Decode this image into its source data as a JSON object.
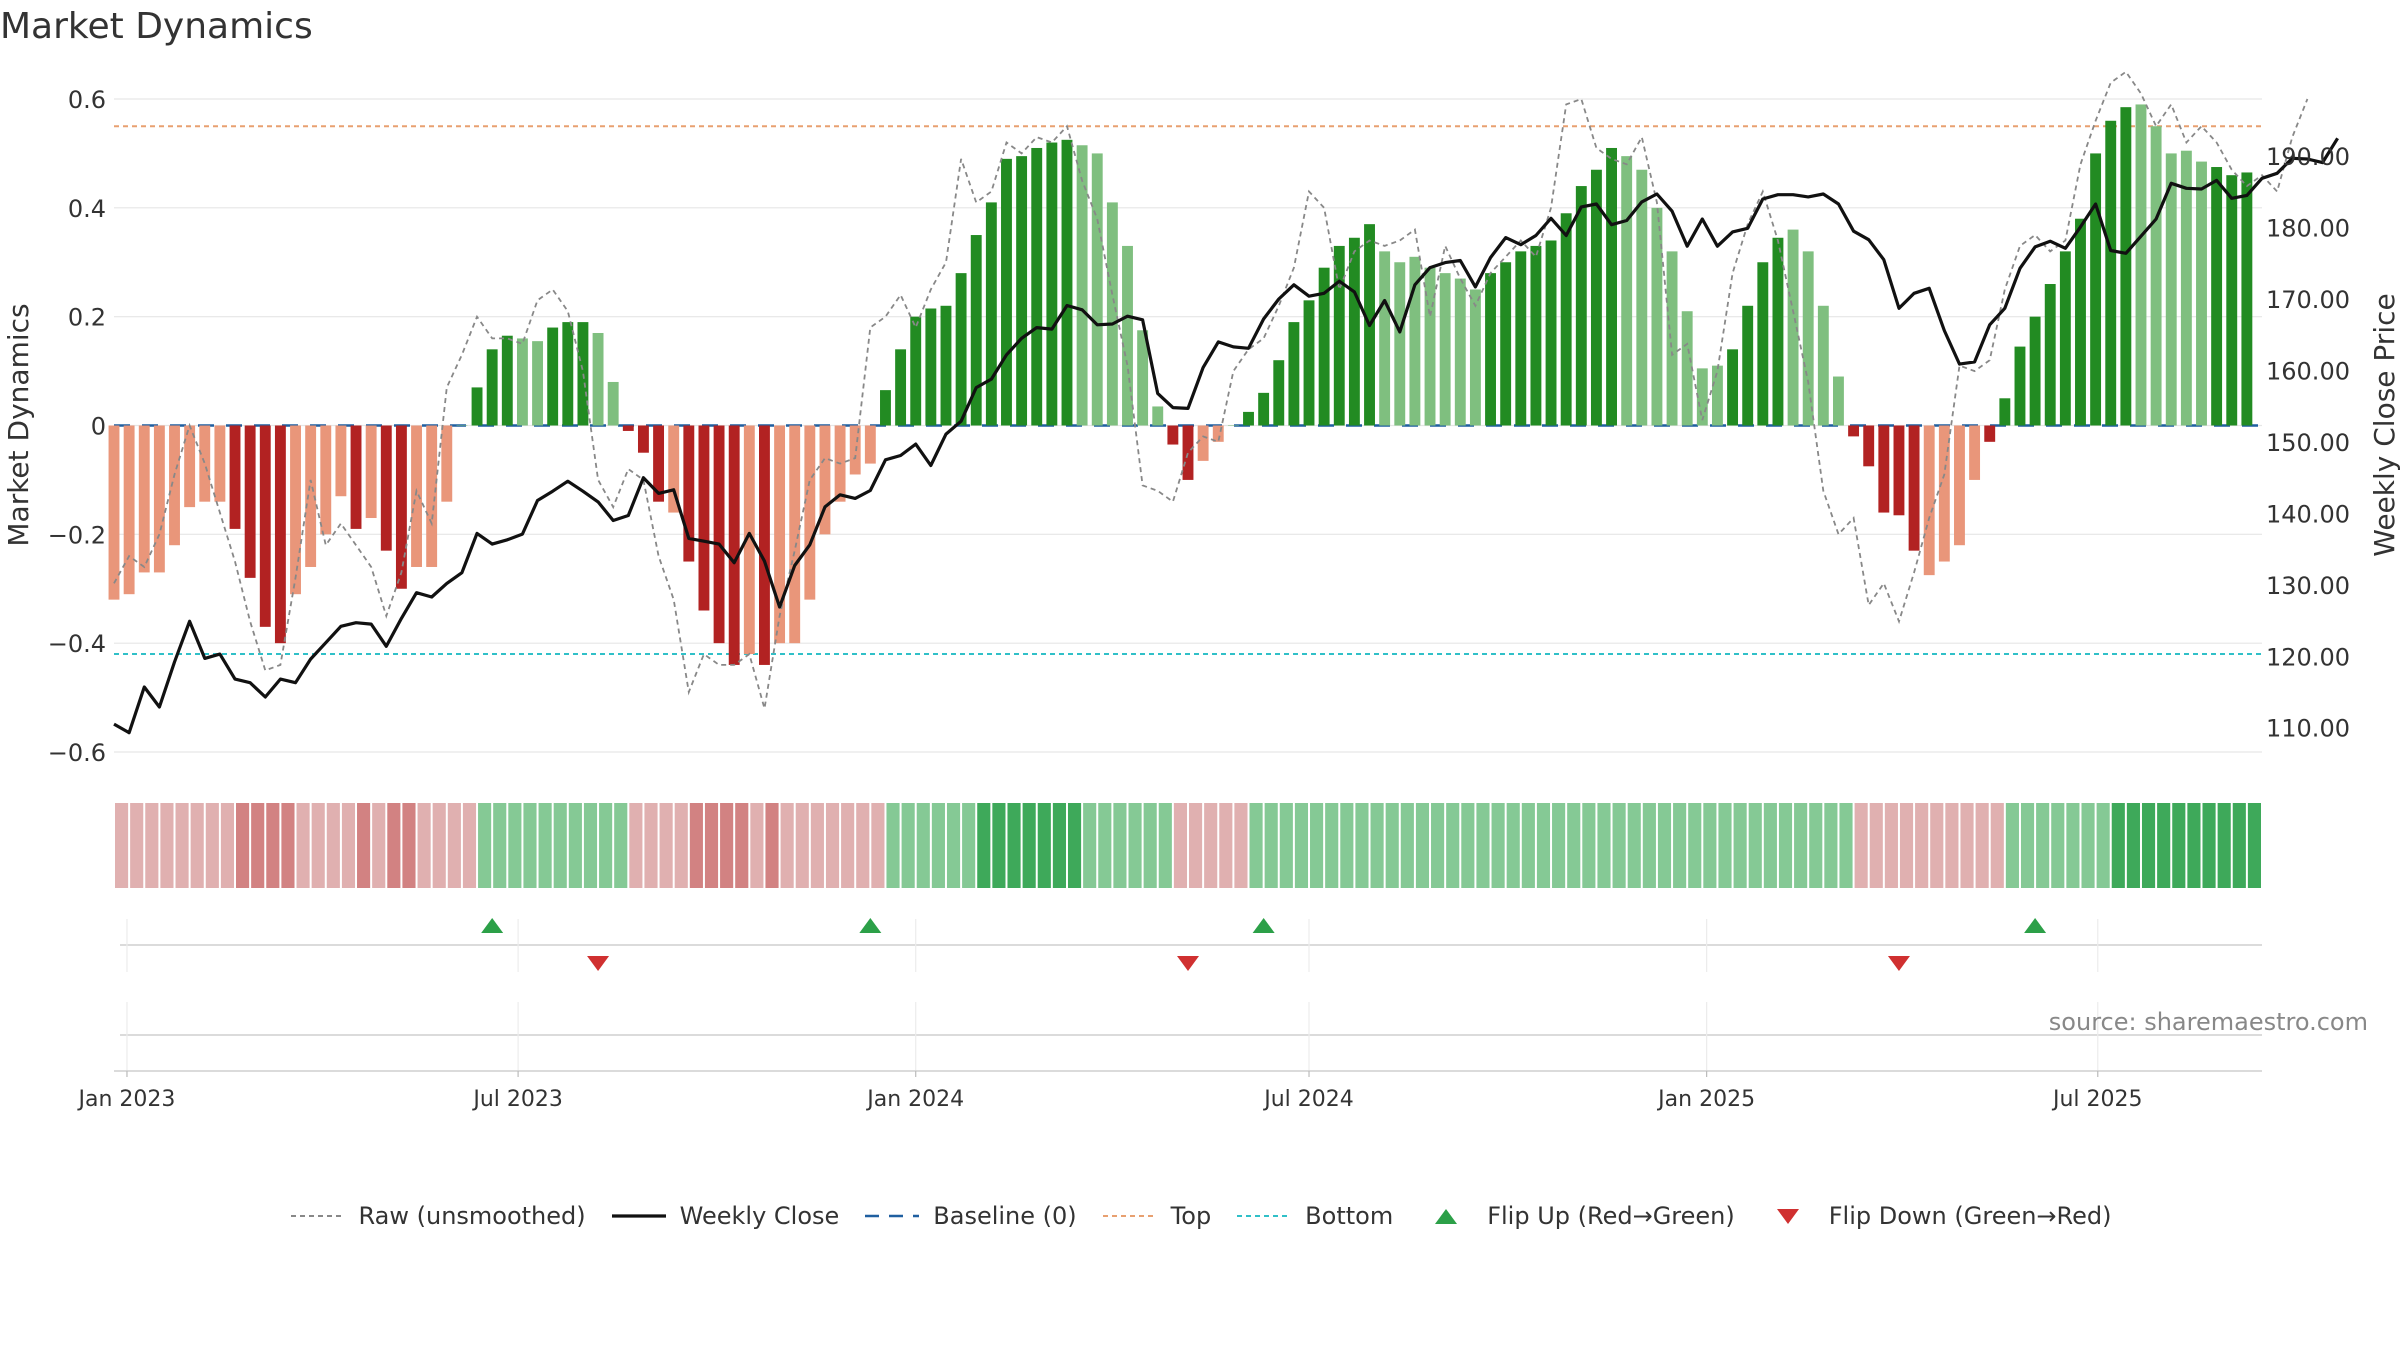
{
  "title": "Market Dynamics",
  "source": "source: sharemaestro.com",
  "colors": {
    "strong_up": "#228b22",
    "weak_up": "#7fbf7f",
    "strong_down": "#b22222",
    "weak_down": "#e9967a",
    "close": "#111111",
    "raw": "#888888",
    "baseline": "#1f5fa0",
    "top": "#e8a070",
    "bottom": "#30c0c8",
    "flip_up": "#2ca048",
    "flip_down": "#d03030"
  },
  "legend": [
    {
      "key": "raw",
      "label": "Raw (unsmoothed)"
    },
    {
      "key": "close",
      "label": "Weekly Close"
    },
    {
      "key": "baseline",
      "label": "Baseline (0)"
    },
    {
      "key": "top",
      "label": "Top"
    },
    {
      "key": "bottom",
      "label": "Bottom"
    },
    {
      "key": "flip_up",
      "label": "Flip Up (Red→Green)"
    },
    {
      "key": "flip_down",
      "label": "Flip Down (Green→Red)"
    }
  ],
  "chart_data": {
    "type": "bar",
    "ylabel": "Market Dynamics",
    "y2label": "Weekly Close Price",
    "ylim": [
      -0.6,
      0.6
    ],
    "y2lim": [
      106.6,
      198.0
    ],
    "yticks": [
      "0.6",
      "0.4",
      "0.2",
      "0",
      "−0.2",
      "−0.4",
      "−0.6"
    ],
    "ytick_values": [
      0.6,
      0.4,
      0.2,
      0,
      -0.2,
      -0.4,
      -0.6
    ],
    "y2ticks": [
      "190.00",
      "180.00",
      "170.00",
      "160.00",
      "150.00",
      "140.00",
      "130.00",
      "120.00",
      "110.00"
    ],
    "y2tick_values": [
      190,
      180,
      170,
      160,
      150,
      140,
      130,
      120,
      110
    ],
    "xlim": [
      "2022-12-26",
      "2025-09-15"
    ],
    "xticks": [
      "Jan 2023",
      "Jul 2023",
      "Jan 2024",
      "Jul 2024",
      "Jan 2025",
      "Jul 2025"
    ],
    "xtick_dates": [
      "2023-01-01",
      "2023-07-01",
      "2024-01-01",
      "2024-07-01",
      "2025-01-01",
      "2025-07-01"
    ],
    "top_level": 0.55,
    "bottom_level": -0.42,
    "baseline": 0,
    "week_start": "2022-12-26",
    "dynamics": [
      -0.32,
      -0.31,
      -0.27,
      -0.27,
      -0.22,
      -0.15,
      -0.14,
      -0.14,
      -0.19,
      -0.28,
      -0.37,
      -0.4,
      -0.31,
      -0.26,
      -0.2,
      -0.13,
      -0.19,
      -0.17,
      -0.23,
      -0.3,
      -0.26,
      -0.26,
      -0.14,
      0.0,
      0.07,
      0.14,
      0.165,
      0.16,
      0.155,
      0.18,
      0.19,
      0.19,
      0.17,
      0.08,
      -0.01,
      -0.05,
      -0.14,
      -0.16,
      -0.25,
      -0.34,
      -0.4,
      -0.44,
      -0.42,
      -0.44,
      -0.4,
      -0.4,
      -0.32,
      -0.2,
      -0.14,
      -0.09,
      -0.07,
      0.065,
      0.14,
      0.2,
      0.215,
      0.22,
      0.28,
      0.35,
      0.41,
      0.49,
      0.495,
      0.51,
      0.52,
      0.525,
      0.515,
      0.5,
      0.41,
      0.33,
      0.175,
      0.035,
      -0.035,
      -0.1,
      -0.065,
      -0.03,
      0.0,
      0.025,
      0.06,
      0.12,
      0.19,
      0.23,
      0.29,
      0.33,
      0.345,
      0.37,
      0.32,
      0.3,
      0.31,
      0.29,
      0.28,
      0.27,
      0.25,
      0.28,
      0.3,
      0.32,
      0.33,
      0.34,
      0.39,
      0.44,
      0.47,
      0.51,
      0.495,
      0.47,
      0.4,
      0.32,
      0.21,
      0.105,
      0.11,
      0.14,
      0.22,
      0.3,
      0.345,
      0.36,
      0.32,
      0.22,
      0.09,
      -0.02,
      -0.075,
      -0.16,
      -0.165,
      -0.23,
      -0.275,
      -0.25,
      -0.22,
      -0.1,
      -0.03,
      0.05,
      0.145,
      0.2,
      0.26,
      0.32,
      0.38,
      0.5,
      0.56,
      0.585,
      0.59,
      0.55,
      0.5,
      0.505,
      0.485,
      0.475,
      0.46,
      0.465
    ],
    "weak_flags": [
      1,
      1,
      1,
      1,
      1,
      1,
      1,
      1,
      0,
      0,
      0,
      0,
      1,
      1,
      1,
      1,
      0,
      1,
      0,
      0,
      1,
      1,
      1,
      1,
      0,
      0,
      0,
      1,
      1,
      0,
      0,
      0,
      1,
      1,
      0,
      0,
      0,
      1,
      0,
      0,
      0,
      0,
      1,
      0,
      1,
      1,
      1,
      1,
      1,
      1,
      1,
      0,
      0,
      0,
      0,
      0,
      0,
      0,
      0,
      0,
      0,
      0,
      0,
      0,
      1,
      1,
      1,
      1,
      1,
      1,
      0,
      0,
      1,
      1,
      1,
      0,
      0,
      0,
      0,
      0,
      0,
      0,
      0,
      0,
      1,
      1,
      1,
      1,
      1,
      1,
      1,
      0,
      0,
      0,
      0,
      0,
      0,
      0,
      0,
      0,
      1,
      1,
      1,
      1,
      1,
      1,
      1,
      0,
      0,
      0,
      0,
      1,
      1,
      1,
      1,
      0,
      0,
      0,
      0,
      0,
      1,
      1,
      1,
      1,
      0,
      0,
      0,
      0,
      0,
      0,
      0,
      0,
      0,
      0,
      1,
      1,
      1,
      1,
      1,
      0
    ],
    "close": [
      110.5,
      109.3,
      115.7,
      112.9,
      119.2,
      124.9,
      119.7,
      120.3,
      116.8,
      116.3,
      114.3,
      116.8,
      116.3,
      119.6,
      121.9,
      124.2,
      124.7,
      124.5,
      121.4,
      125.3,
      128.9,
      128.3,
      130.2,
      131.7,
      137.2,
      135.7,
      136.3,
      137.1,
      141.8,
      143.1,
      144.5,
      143.1,
      141.6,
      139.0,
      139.7,
      145.0,
      142.8,
      143.3,
      136.5,
      136.1,
      135.7,
      133.1,
      137.2,
      133.3,
      126.9,
      132.7,
      135.6,
      140.9,
      142.6,
      142.1,
      143.2,
      147.5,
      148.1,
      149.7,
      146.7,
      151.1,
      152.9,
      157.6,
      158.8,
      162.2,
      164.5,
      166.0,
      165.8,
      169.1,
      168.5,
      166.4,
      166.5,
      167.6,
      167.1,
      156.8,
      154.8,
      154.7,
      160.4,
      164.0,
      163.3,
      163.1,
      167.2,
      170.0,
      172.0,
      170.4,
      170.8,
      172.5,
      171.0,
      166.3,
      169.8,
      165.4,
      172.0,
      174.4,
      175.1,
      175.4,
      171.7,
      175.8,
      178.6,
      177.6,
      178.9,
      181.3,
      178.9,
      182.9,
      183.3,
      180.4,
      181.0,
      183.6,
      184.7,
      182.3,
      177.4,
      181.2,
      177.4,
      179.4,
      179.9,
      184.0,
      184.6,
      184.6,
      184.3,
      184.7,
      183.3,
      179.5,
      178.3,
      175.5,
      168.7,
      170.8,
      171.5,
      165.6,
      160.9,
      161.2,
      166.4,
      168.7,
      174.3,
      177.3,
      178.1,
      177.1,
      180.1,
      183.3,
      176.8,
      176.4,
      178.8,
      181.2,
      186.2,
      185.5,
      185.4,
      186.6,
      184.1,
      184.5,
      186.9,
      187.6,
      189.7,
      189.6,
      189.1,
      192.5
    ],
    "raw": [
      -0.29,
      -0.24,
      -0.26,
      -0.2,
      -0.09,
      0.0,
      -0.07,
      -0.16,
      -0.25,
      -0.36,
      -0.45,
      -0.44,
      -0.28,
      -0.1,
      -0.22,
      -0.18,
      -0.22,
      -0.26,
      -0.35,
      -0.27,
      -0.12,
      -0.18,
      0.07,
      0.13,
      0.2,
      0.16,
      0.16,
      0.15,
      0.23,
      0.25,
      0.21,
      0.1,
      -0.1,
      -0.15,
      -0.08,
      -0.1,
      -0.24,
      -0.32,
      -0.49,
      -0.42,
      -0.44,
      -0.44,
      -0.42,
      -0.52,
      -0.35,
      -0.23,
      -0.1,
      -0.06,
      -0.07,
      -0.06,
      0.18,
      0.2,
      0.24,
      0.18,
      0.25,
      0.3,
      0.49,
      0.41,
      0.43,
      0.52,
      0.5,
      0.53,
      0.52,
      0.55,
      0.45,
      0.38,
      0.24,
      0.11,
      -0.11,
      -0.12,
      -0.14,
      -0.05,
      -0.02,
      -0.03,
      0.1,
      0.14,
      0.16,
      0.22,
      0.29,
      0.43,
      0.4,
      0.25,
      0.32,
      0.34,
      0.33,
      0.34,
      0.36,
      0.2,
      0.33,
      0.27,
      0.22,
      0.28,
      0.31,
      0.34,
      0.31,
      0.4,
      0.59,
      0.6,
      0.51,
      0.49,
      0.48,
      0.53,
      0.41,
      0.13,
      0.15,
      0.01,
      0.1,
      0.28,
      0.37,
      0.43,
      0.34,
      0.21,
      0.08,
      -0.12,
      -0.2,
      -0.17,
      -0.33,
      -0.29,
      -0.36,
      -0.27,
      -0.17,
      -0.09,
      0.11,
      0.1,
      0.12,
      0.25,
      0.33,
      0.35,
      0.32,
      0.34,
      0.48,
      0.56,
      0.63,
      0.65,
      0.61,
      0.55,
      0.59,
      0.52,
      0.55,
      0.52,
      0.47,
      0.44,
      0.46,
      0.43,
      0.53,
      0.6
    ],
    "shade_states": [
      "wd",
      "wd",
      "wd",
      "wd",
      "wd",
      "wd",
      "wd",
      "wd",
      "sd",
      "sd",
      "sd",
      "sd",
      "wd",
      "wd",
      "wd",
      "wd",
      "sd",
      "wd",
      "sd",
      "sd",
      "wd",
      "wd",
      "wd",
      "wd",
      "wu",
      "wu",
      "wu",
      "wu",
      "wu",
      "wu",
      "wu",
      "wu",
      "wu",
      "wu",
      "wd",
      "wd",
      "wd",
      "wd",
      "sd",
      "sd",
      "sd",
      "sd",
      "wd",
      "sd",
      "wd",
      "wd",
      "wd",
      "wd",
      "wd",
      "wd",
      "wd",
      "wu",
      "wu",
      "wu",
      "wu",
      "wu",
      "wu",
      "su",
      "su",
      "su",
      "su",
      "su",
      "su",
      "su",
      "wu",
      "wu",
      "wu",
      "wu",
      "wu",
      "wu",
      "wd",
      "wd",
      "wd",
      "wd",
      "wd",
      "wu",
      "wu",
      "wu",
      "wu",
      "wu",
      "wu",
      "wu",
      "wu",
      "wu",
      "wu",
      "wu",
      "wu",
      "wu",
      "wu",
      "wu",
      "wu",
      "wu",
      "wu",
      "wu",
      "wu",
      "wu",
      "wu",
      "wu",
      "wu",
      "wu",
      "wu",
      "wu",
      "wu",
      "wu",
      "wu",
      "wu",
      "wu",
      "wu",
      "wu",
      "wu",
      "wu",
      "wu",
      "wu",
      "wu",
      "wu",
      "wd",
      "wd",
      "wd",
      "wd",
      "wd",
      "wd",
      "wd",
      "wd",
      "wd",
      "wd",
      "wu",
      "wu",
      "wu",
      "wu",
      "wu",
      "wu",
      "wu",
      "su",
      "su",
      "su",
      "su",
      "su",
      "su",
      "su",
      "su",
      "su",
      "su",
      "su",
      "su",
      "su",
      "su"
    ],
    "flip_up_dates": [
      "2023-06-19",
      "2023-12-11",
      "2024-06-10",
      "2025-06-02"
    ],
    "flip_down_dates": [
      "2023-08-07",
      "2024-05-06",
      "2025-03-31"
    ]
  }
}
